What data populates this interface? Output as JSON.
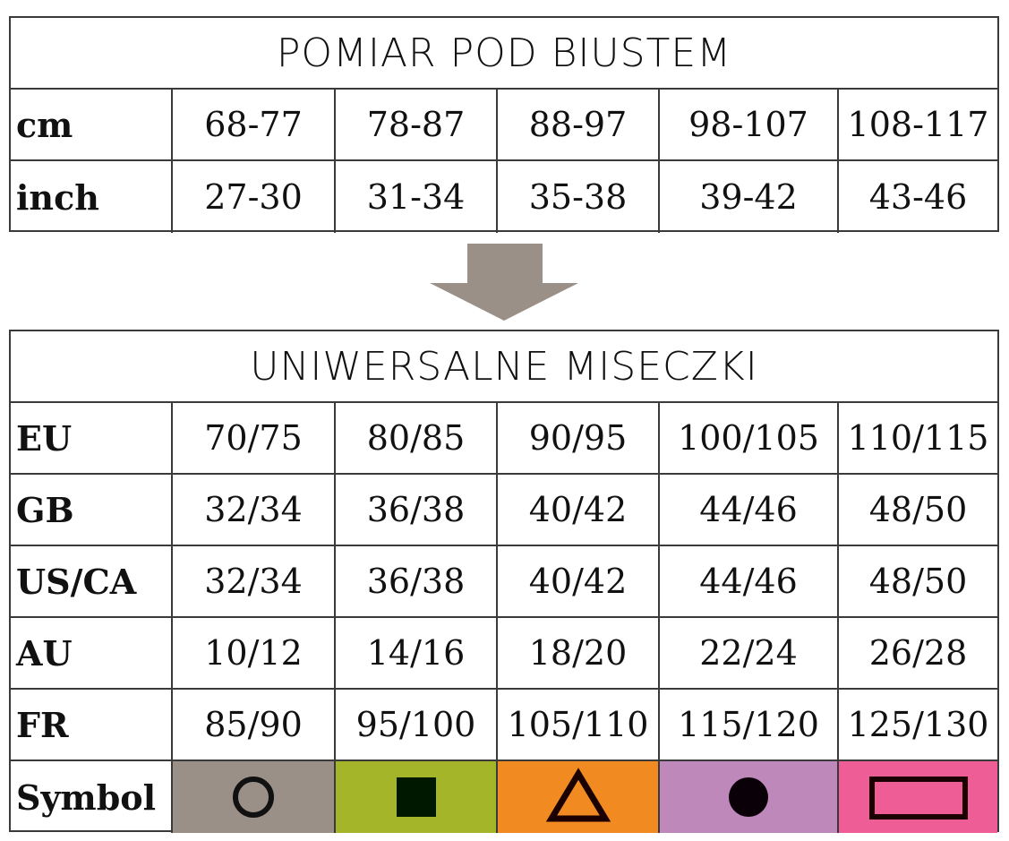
{
  "table1": {
    "title": "POMIAR POD BIUSTEM",
    "rows": [
      {
        "label": "cm",
        "values": [
          "68-77",
          "78-87",
          "88-97",
          "98-107",
          "108-117"
        ]
      },
      {
        "label": "inch",
        "values": [
          "27-30",
          "31-34",
          "35-38",
          "39-42",
          "43-46"
        ]
      }
    ]
  },
  "arrow": {
    "icon": "arrow-down-icon",
    "color": "#9a9088"
  },
  "table2": {
    "title": "UNIWERSALNE MISECZKI",
    "rows": [
      {
        "label": "EU",
        "values": [
          "70/75",
          "80/85",
          "90/95",
          "100/105",
          "110/115"
        ]
      },
      {
        "label": "GB",
        "values": [
          "32/34",
          "36/38",
          "40/42",
          "44/46",
          "48/50"
        ]
      },
      {
        "label": "US/CA",
        "values": [
          "32/34",
          "36/38",
          "40/42",
          "44/46",
          "48/50"
        ]
      },
      {
        "label": "AU",
        "values": [
          "10/12",
          "14/16",
          "18/20",
          "22/24",
          "26/28"
        ]
      },
      {
        "label": "FR",
        "values": [
          "85/90",
          "95/100",
          "105/110",
          "115/120",
          "125/130"
        ]
      }
    ],
    "symbol_row": {
      "label": "Symbol",
      "symbols": [
        {
          "icon": "circle-outline-icon",
          "color": "#9a9088"
        },
        {
          "icon": "square-filled-icon",
          "color": "#a5b52a"
        },
        {
          "icon": "triangle-outline-icon",
          "color": "#f28a22"
        },
        {
          "icon": "circle-filled-icon",
          "color": "#be88bb"
        },
        {
          "icon": "rectangle-outline-icon",
          "color": "#ef5d97"
        }
      ]
    }
  }
}
